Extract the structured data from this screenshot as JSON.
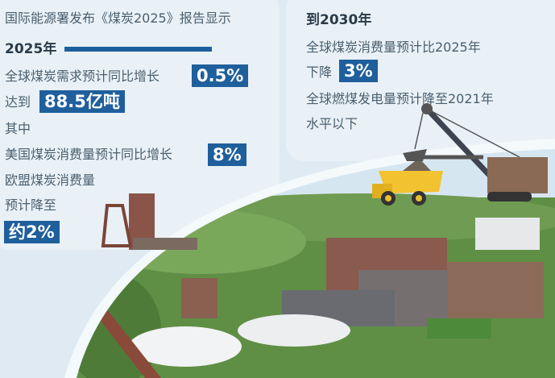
{
  "left": {
    "title": "国际能源署发布《煤炭2025》报告显示",
    "year_heading": "2025年",
    "line1": "全球煤炭需求预计同比增长",
    "badge1": "0.5%",
    "line2": "达到",
    "badge2": "88.5亿吨",
    "line3": "其中",
    "line4": "美国煤炭消费量预计同比增长",
    "badge4": "8%",
    "line5": "欧盟煤炭消费量",
    "line6": "预计降至",
    "badge6": "约2%"
  },
  "right": {
    "year_heading": "到2030年",
    "line1": "全球煤炭消费量预计比2025年",
    "line2": "下降",
    "badge2": "3%",
    "line3": "全球燃煤发电量预计降至2021年",
    "line4": "水平以下"
  },
  "colors": {
    "accent": "#1f5f9c",
    "background": "#dfeaf2"
  }
}
